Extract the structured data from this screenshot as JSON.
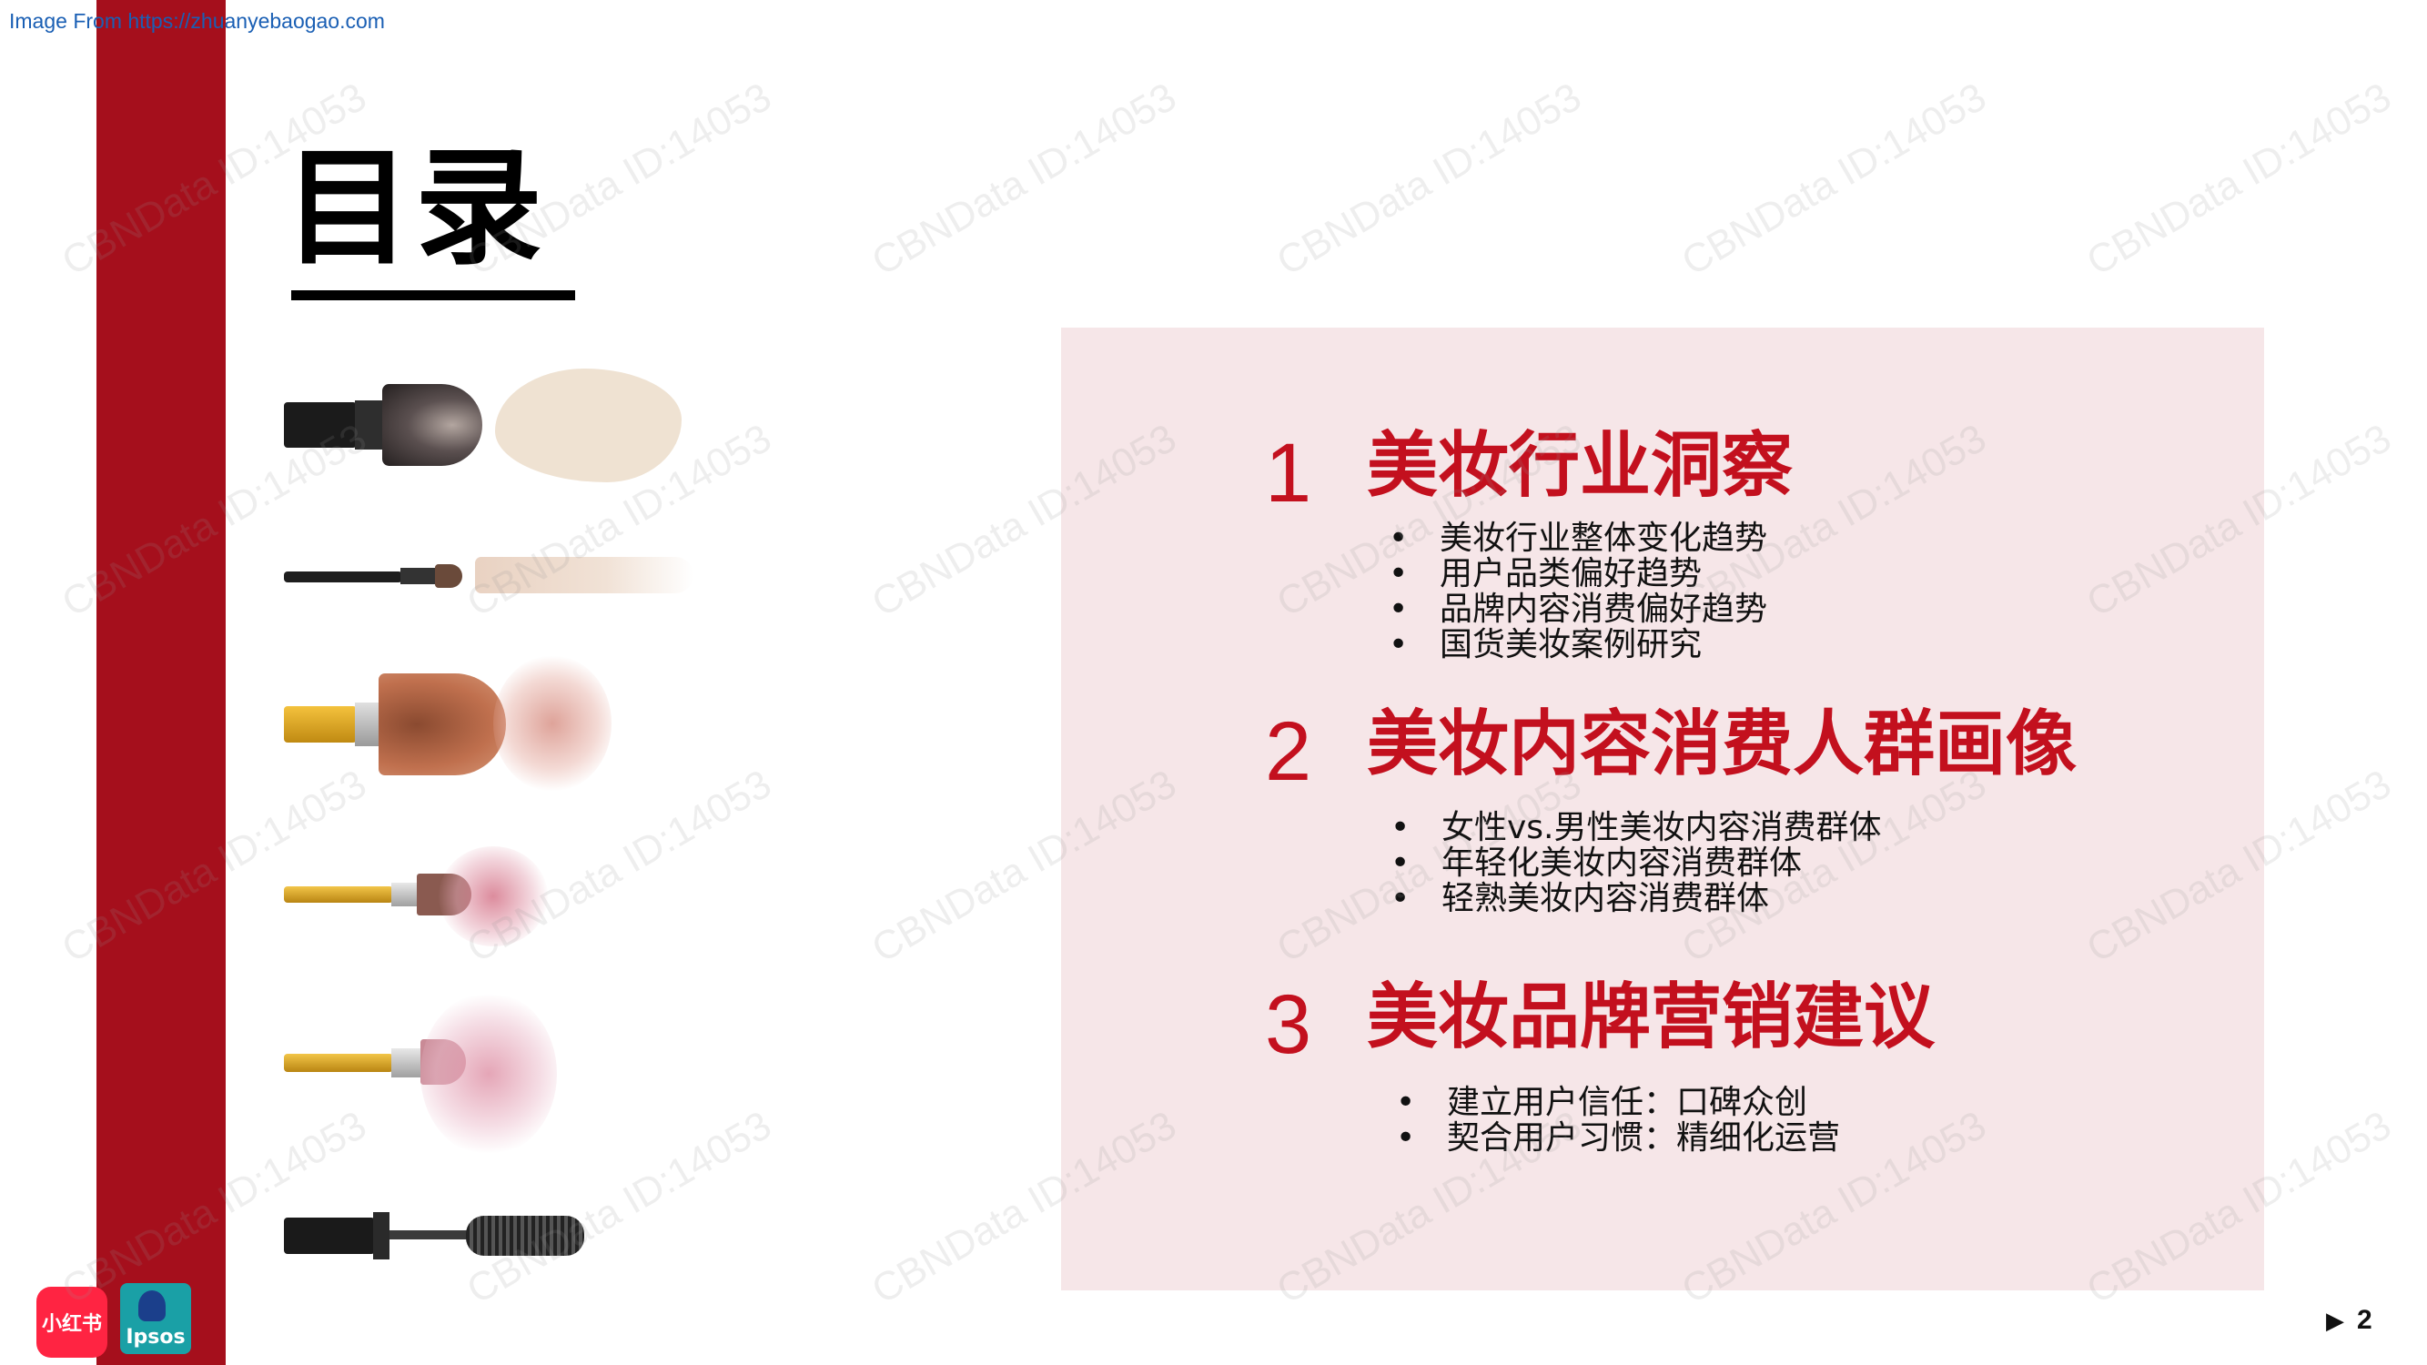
{
  "source_link": "Image From https://zhuanyebaogao.com",
  "title": "目录",
  "sections": [
    {
      "number": "1",
      "title": "美妆行业洞察",
      "items": [
        "美妆行业整体变化趋势",
        "用户品类偏好趋势",
        "品牌内容消费偏好趋势",
        "国货美妆案例研究"
      ]
    },
    {
      "number": "2",
      "title": "美妆内容消费人群画像",
      "items": [
        "女性vs.男性美妆内容消费群体",
        "年轻化美妆内容消费群体",
        "轻熟美妆内容消费群体"
      ]
    },
    {
      "number": "3",
      "title": "美妆品牌营销建议",
      "items": [
        "建立用户信任：口碑众创",
        "契合用户习惯：精细化运营"
      ]
    }
  ],
  "watermark_text": "CBNData ID:14053",
  "logos": {
    "xiaohongshu": "小红书",
    "ipsos": "Ipsos"
  },
  "page_number": "2",
  "colors": {
    "accent_red": "#c3101e",
    "band_red": "#a50f1c",
    "panel_pink": "#f6e6e8"
  }
}
